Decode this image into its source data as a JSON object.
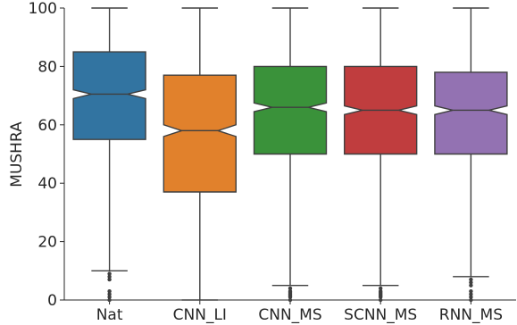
{
  "chart_data": {
    "type": "box",
    "ylabel": "MUSHRA",
    "xlabel": "",
    "ylim": [
      0,
      100
    ],
    "yticks": [
      0,
      20,
      40,
      60,
      80,
      100
    ],
    "notched": true,
    "grid": false,
    "categories": [
      "Nat",
      "CNN_LI",
      "CNN_MS",
      "SCNN_MS",
      "RNN_MS"
    ],
    "boxes": [
      {
        "name": "Nat",
        "color": "#3274a1",
        "whisker_low": 10,
        "q1": 55,
        "median": 70.5,
        "q3": 85,
        "whisker_high": 100,
        "notch_low": 69,
        "notch_high": 72,
        "fliers": [
          0,
          1,
          2,
          3,
          7,
          8,
          9
        ]
      },
      {
        "name": "CNN_LI",
        "color": "#e1812c",
        "whisker_low": 0,
        "q1": 37,
        "median": 58,
        "q3": 77,
        "whisker_high": 100,
        "notch_low": 56,
        "notch_high": 60,
        "fliers": []
      },
      {
        "name": "CNN_MS",
        "color": "#3a923a",
        "whisker_low": 5,
        "q1": 50,
        "median": 66,
        "q3": 80,
        "whisker_high": 100,
        "notch_low": 64.5,
        "notch_high": 67.5,
        "fliers": [
          0,
          1,
          1.5,
          2,
          2.5,
          3,
          4
        ]
      },
      {
        "name": "SCNN_MS",
        "color": "#c03d3e",
        "whisker_low": 5,
        "q1": 50,
        "median": 65,
        "q3": 80,
        "whisker_high": 100,
        "notch_low": 63.5,
        "notch_high": 66.5,
        "fliers": [
          0,
          1,
          1.5,
          2,
          2.5,
          3,
          4
        ]
      },
      {
        "name": "RNN_MS",
        "color": "#9372b2",
        "whisker_low": 8,
        "q1": 50,
        "median": 65,
        "q3": 78,
        "whisker_high": 100,
        "notch_low": 63.5,
        "notch_high": 66.5,
        "fliers": [
          0,
          1,
          2,
          3,
          5,
          6,
          7
        ]
      }
    ]
  }
}
